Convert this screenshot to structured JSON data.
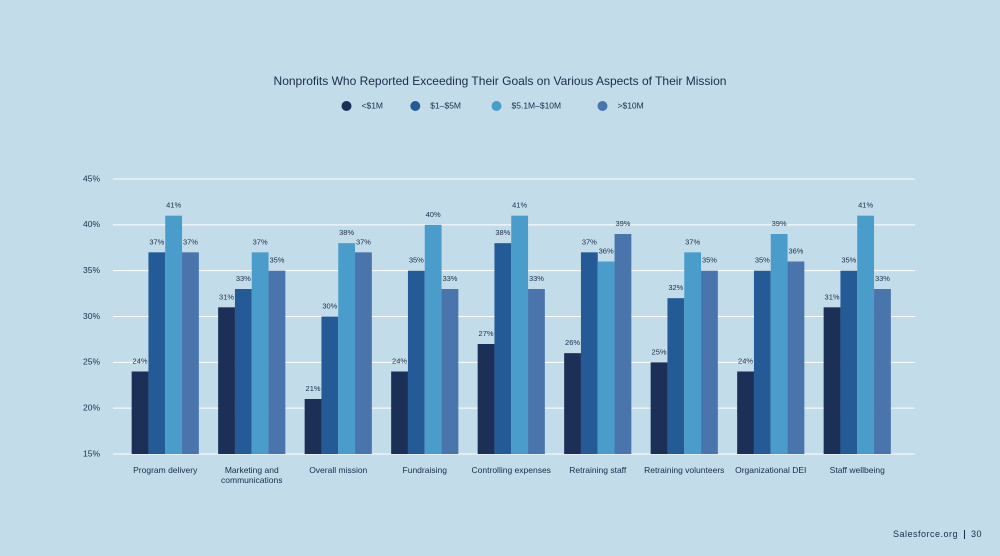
{
  "chart_data": {
    "type": "bar",
    "title": "Nonprofits Who Reported Exceeding Their Goals on Various Aspects of Their Mission",
    "categories": [
      "Program delivery",
      "Marketing and communications",
      "Overall mission",
      "Fundraising",
      "Controlling expenses",
      "Retraining staff",
      "Retraining volunteers",
      "Organizational DEI",
      "Staff wellbeing"
    ],
    "series": [
      {
        "name": "<$1M",
        "color": "#1b2f57",
        "values": [
          24,
          31,
          21,
          24,
          27,
          26,
          25,
          24,
          31
        ],
        "value_labels": [
          "24%",
          "31%",
          "21%",
          "24%",
          "27%",
          "26%",
          "25%",
          "24%",
          "31%"
        ]
      },
      {
        "name": "$1–$5M",
        "color": "#245a96",
        "values": [
          37,
          33,
          30,
          35,
          38,
          37,
          32,
          35,
          35
        ],
        "value_labels": [
          "37%",
          "33%",
          "30%",
          "35%",
          "38%",
          "37%",
          "32%",
          "35%",
          "35%"
        ]
      },
      {
        "name": "$5.1M–$10M",
        "color": "#4a9ccb",
        "values": [
          41,
          37,
          38,
          40,
          41,
          36,
          37,
          39,
          41
        ],
        "value_labels": [
          "41%",
          "37%",
          "38%",
          "40%",
          "41%",
          "36%",
          "37%",
          "39%",
          "41%"
        ]
      },
      {
        "name": ">$10M",
        "color": "#4a74ac",
        "values": [
          37,
          35,
          37,
          33,
          33,
          39,
          35,
          36,
          33
        ],
        "value_labels": [
          "37%",
          "35%",
          "37%",
          "33%",
          "33%",
          "39%",
          "35%",
          "36%",
          "33%"
        ]
      }
    ],
    "ylim": [
      15,
      45
    ],
    "yticks": [
      {
        "value": 15,
        "label": "15%"
      },
      {
        "value": 20,
        "label": "20%"
      },
      {
        "value": 25,
        "label": "25%"
      },
      {
        "value": 30,
        "label": "30%"
      },
      {
        "value": 35,
        "label": "35%"
      },
      {
        "value": 40,
        "label": "40%"
      },
      {
        "value": 45,
        "label": "45%"
      }
    ],
    "grid": true,
    "legend": "top"
  },
  "footer": {
    "brand": "Salesforce.org",
    "page": "30"
  }
}
